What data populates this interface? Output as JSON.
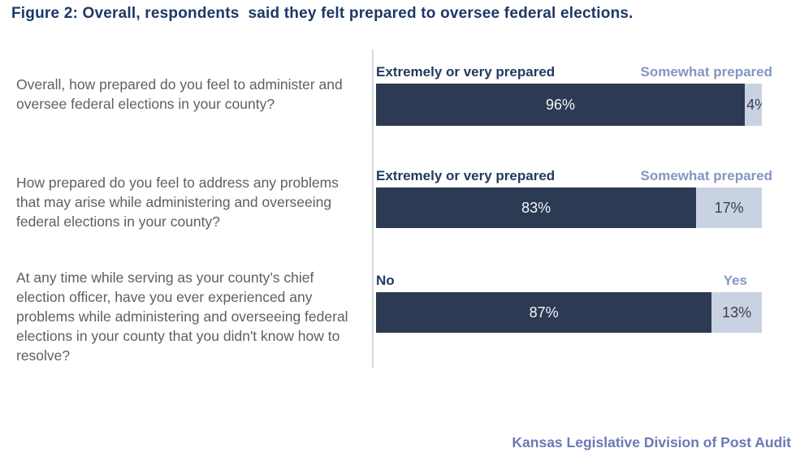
{
  "figure": {
    "title": "Figure 2: Overall, respondents  said they felt prepared to oversee federal elections.",
    "source": "Kansas Legislative Division of Post Audit"
  },
  "colors": {
    "background": "#ffffff",
    "title": "#1d3766",
    "question-text": "#5f5f5f",
    "label-left": "#223a60",
    "label-right": "#8496c1",
    "bar-dark": "#2c3a54",
    "bar-light": "#c9d2e2",
    "value-on-dark": "#f5f5f5",
    "value-on-light": "#3a3f4b",
    "axis-line": "#d9d9d9",
    "source-text": "#6b79b3"
  },
  "chart_data": {
    "type": "bar",
    "orientation": "horizontal",
    "stacked": true,
    "value_unit": "percent",
    "x_range": [
      0,
      100
    ],
    "legend_position": "above-bars",
    "grid": false,
    "rows": [
      {
        "question": "Overall, how prepared do you feel to administer and oversee federal elections in your county?",
        "left_label": "Extremely or very prepared",
        "right_label": "Somewhat prepared",
        "segments": [
          {
            "label": "Extremely or very prepared",
            "value": 96,
            "display": "96%"
          },
          {
            "label": "Somewhat prepared",
            "value": 4,
            "display": "4%"
          }
        ]
      },
      {
        "question": "How prepared do you feel to address any problems that may arise while administering and overseeing federal elections in your county?",
        "left_label": "Extremely or very prepared",
        "right_label": "Somewhat prepared",
        "segments": [
          {
            "label": "Extremely or very prepared",
            "value": 83,
            "display": "83%"
          },
          {
            "label": "Somewhat prepared",
            "value": 17,
            "display": "17%"
          }
        ]
      },
      {
        "question": "At any time while serving as your county’s chief election officer, have you ever experienced any problems while administering and overseeing federal elections in your county that you didn't know how to resolve?",
        "left_label": "No",
        "right_label": "Yes",
        "segments": [
          {
            "label": "No",
            "value": 87,
            "display": "87%"
          },
          {
            "label": "Yes",
            "value": 13,
            "display": "13%"
          }
        ]
      }
    ]
  }
}
